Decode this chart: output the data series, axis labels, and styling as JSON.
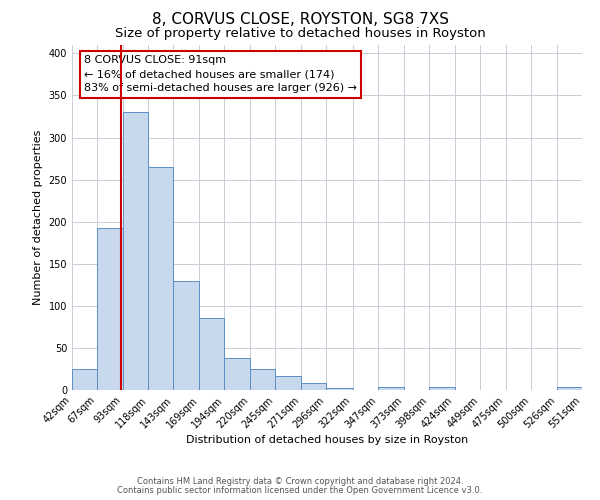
{
  "title": "8, CORVUS CLOSE, ROYSTON, SG8 7XS",
  "subtitle": "Size of property relative to detached houses in Royston",
  "xlabel": "Distribution of detached houses by size in Royston",
  "ylabel": "Number of detached properties",
  "bin_labels": [
    "42sqm",
    "67sqm",
    "93sqm",
    "118sqm",
    "143sqm",
    "169sqm",
    "194sqm",
    "220sqm",
    "245sqm",
    "271sqm",
    "296sqm",
    "322sqm",
    "347sqm",
    "373sqm",
    "398sqm",
    "424sqm",
    "449sqm",
    "475sqm",
    "500sqm",
    "526sqm",
    "551sqm"
  ],
  "bin_edges": [
    42,
    67,
    93,
    118,
    143,
    169,
    194,
    220,
    245,
    271,
    296,
    322,
    347,
    373,
    398,
    424,
    449,
    475,
    500,
    526,
    551
  ],
  "bar_heights": [
    25,
    193,
    330,
    265,
    130,
    86,
    38,
    25,
    17,
    8,
    2,
    0,
    4,
    0,
    4,
    0,
    0,
    0,
    0,
    3
  ],
  "bar_fill_color": "#c9d9ed",
  "bar_edge_color": "#5b8fc4",
  "vline_x": 91,
  "vline_color": "#cc0000",
  "annotation_line1": "8 CORVUS CLOSE: 91sqm",
  "annotation_line2": "← 16% of detached houses are smaller (174)",
  "annotation_line3": "83% of semi-detached houses are larger (926) →",
  "annotation_box_color": "#ffffff",
  "annotation_box_edge_color": "#cc0000",
  "ylim": [
    0,
    410
  ],
  "yticks": [
    0,
    50,
    100,
    150,
    200,
    250,
    300,
    350,
    400
  ],
  "footer_line1": "Contains HM Land Registry data © Crown copyright and database right 2024.",
  "footer_line2": "Contains public sector information licensed under the Open Government Licence v3.0.",
  "bg_color": "#ffffff",
  "grid_color": "#c8cdd6",
  "title_fontsize": 11,
  "subtitle_fontsize": 9.5,
  "axis_label_fontsize": 8,
  "tick_fontsize": 7,
  "annotation_fontsize": 8,
  "footer_fontsize": 6
}
